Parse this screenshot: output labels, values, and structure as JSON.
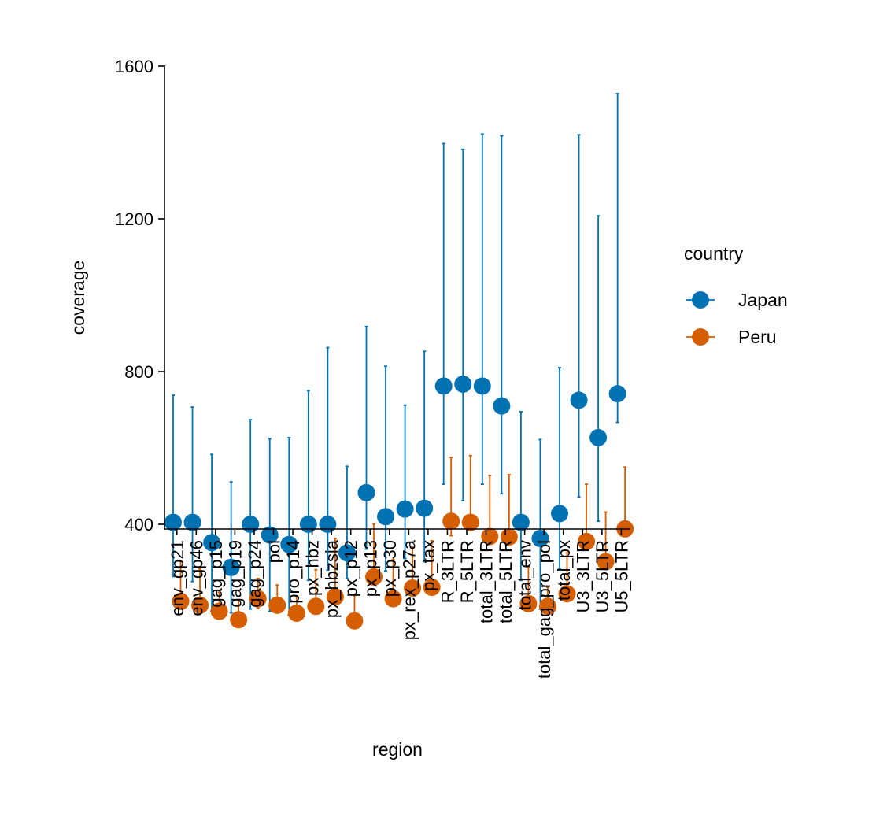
{
  "chart_data": {
    "type": "scatter",
    "title": "",
    "xlabel": "region",
    "ylabel": "coverage",
    "ylim": [
      60,
      1600
    ],
    "yticks": [
      400,
      800,
      1200,
      1600
    ],
    "grid": false,
    "legend": {
      "title": "country",
      "placement": "right"
    },
    "categories": [
      "env_gp21",
      "env_gp46",
      "gag_p15",
      "gag_p19",
      "gag_p24",
      "pol",
      "pro_p14",
      "px_hbz",
      "px_hbzsia",
      "px_p12",
      "px_p13",
      "px_p30",
      "px_rex_p27a",
      "px_tax",
      "R_3LTR",
      "R_5LTR",
      "total_3LTR",
      "total_5LTR",
      "total_env",
      "total_gag_pro_pol",
      "total_px",
      "U3_3LTR",
      "U3_5LTR",
      "U5_5LTR"
    ],
    "series": [
      {
        "name": "Japan",
        "color": "#0072b2",
        "values": [
          405,
          405,
          352,
          287,
          400,
          372,
          347,
          400,
          400,
          325,
          483,
          420,
          440,
          442,
          762,
          767,
          762,
          710,
          405,
          363,
          428,
          725,
          627,
          742
        ],
        "lower": [
          263,
          250,
          173,
          168,
          178,
          172,
          162,
          253,
          280,
          258,
          335,
          278,
          310,
          302,
          505,
          462,
          505,
          480,
          253,
          178,
          283,
          472,
          408,
          667
        ],
        "upper": [
          738,
          707,
          583,
          511,
          674,
          624,
          627,
          750,
          863,
          552,
          918,
          814,
          712,
          853,
          1397,
          1382,
          1422,
          1417,
          695,
          622,
          810,
          1420,
          1208,
          1528
        ]
      },
      {
        "name": "Peru",
        "color": "#d55e00",
        "values": [
          198,
          188,
          172,
          150,
          205,
          188,
          167,
          185,
          210,
          147,
          262,
          205,
          233,
          235,
          408,
          405,
          368,
          367,
          192,
          185,
          218,
          355,
          302,
          388
        ],
        "lower": [
          198,
          188,
          172,
          150,
          180,
          188,
          167,
          185,
          210,
          147,
          262,
          205,
          233,
          235,
          370,
          405,
          368,
          367,
          192,
          185,
          218,
          355,
          302,
          388
        ],
        "upper": [
          303,
          283,
          222,
          203,
          258,
          241,
          212,
          281,
          363,
          213,
          401,
          308,
          340,
          357,
          575,
          580,
          528,
          530,
          288,
          235,
          325,
          505,
          432,
          550
        ]
      }
    ]
  }
}
